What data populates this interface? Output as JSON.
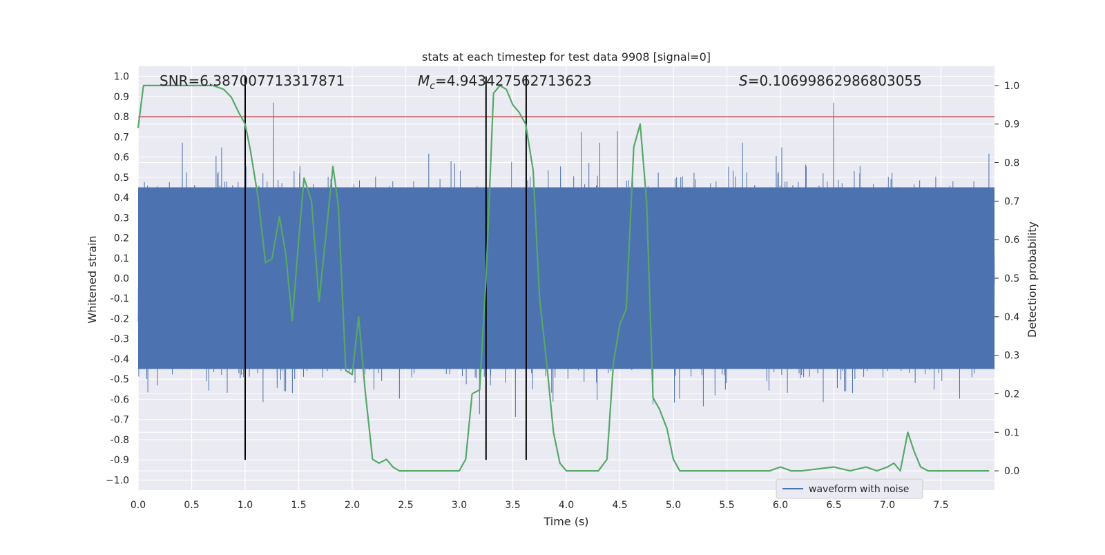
{
  "chart_data": {
    "type": "line",
    "title": "stats at each timestep for test data 9908 [signal=0]",
    "xlabel": "Time (s)",
    "ylabel_left": "Whitened strain",
    "ylabel_right": "Detection probability",
    "xlim": [
      0.0,
      8.0
    ],
    "ylim_left": [
      -1.05,
      1.05
    ],
    "ylim_right": [
      -0.05,
      1.05
    ],
    "x_ticks": [
      "0.0",
      "0.5",
      "1.0",
      "1.5",
      "2.0",
      "2.5",
      "3.0",
      "3.5",
      "4.0",
      "4.5",
      "5.0",
      "5.5",
      "6.0",
      "6.5",
      "7.0",
      "7.5"
    ],
    "y_ticks_left": [
      "1.0",
      "0.9",
      "0.8",
      "0.7",
      "0.6",
      "0.5",
      "0.4",
      "0.3",
      "0.2",
      "0.1",
      "0.0",
      "-0.1",
      "-0.2",
      "-0.3",
      "-0.4",
      "-0.5",
      "-0.6",
      "-0.7",
      "-0.8",
      "-0.9",
      "−1.0"
    ],
    "y_ticks_right": [
      "1.0",
      "0.9",
      "0.8",
      "0.7",
      "0.6",
      "0.5",
      "0.4",
      "0.3",
      "0.2",
      "0.1",
      "0.0"
    ],
    "grid": true,
    "legend": {
      "placement": "lower-right",
      "entries": [
        {
          "label": "waveform with noise",
          "color": "#4c72b0"
        }
      ]
    },
    "annotations": {
      "snr": "SNR=6.387007713317871",
      "mc_symbol": "M",
      "mc_sub": "c",
      "mc_value": "=4.943427562713623",
      "s_symbol": "S",
      "s_value": "=0.10699862986803055"
    },
    "threshold": {
      "axis": "left",
      "value": 0.8,
      "color": "#c44e52"
    },
    "vertical_markers": {
      "x": [
        1.0,
        3.25,
        3.625
      ],
      "y_range_left": [
        -0.9,
        1.0
      ],
      "color": "#000000"
    },
    "series": [
      {
        "name": "waveform with noise",
        "axis": "left",
        "color": "#4c72b0",
        "kind": "dense-noise",
        "core_envelope": 0.45,
        "typical_peak": 0.65,
        "x_range": [
          0.0,
          8.0
        ]
      },
      {
        "axis": "right",
        "color": "#55a868",
        "x": [
          0.0,
          0.05,
          0.1,
          0.2,
          0.3,
          0.4,
          0.5,
          0.6,
          0.7,
          0.8,
          0.87,
          0.94,
          1.0,
          1.05,
          1.12,
          1.19,
          1.25,
          1.32,
          1.38,
          1.44,
          1.5,
          1.55,
          1.62,
          1.69,
          1.75,
          1.82,
          1.87,
          1.94,
          2.0,
          2.06,
          2.12,
          2.19,
          2.25,
          2.32,
          2.38,
          2.44,
          2.5,
          2.6,
          2.8,
          3.0,
          3.06,
          3.12,
          3.19,
          3.25,
          3.32,
          3.38,
          3.44,
          3.5,
          3.56,
          3.62,
          3.69,
          3.75,
          3.82,
          3.88,
          3.94,
          4.0,
          4.1,
          4.2,
          4.3,
          4.38,
          4.44,
          4.5,
          4.56,
          4.63,
          4.69,
          4.75,
          4.81,
          4.87,
          4.94,
          5.0,
          5.06,
          5.2,
          5.5,
          5.9,
          6.0,
          6.1,
          6.2,
          6.5,
          6.65,
          6.8,
          6.9,
          7.0,
          7.06,
          7.12,
          7.19,
          7.25,
          7.31,
          7.38,
          7.44,
          7.5,
          7.7,
          7.95
        ],
        "y": [
          0.89,
          1.0,
          1.0,
          1.0,
          1.0,
          1.0,
          1.0,
          1.0,
          1.0,
          0.99,
          0.97,
          0.93,
          0.9,
          0.83,
          0.71,
          0.54,
          0.55,
          0.66,
          0.56,
          0.39,
          0.6,
          0.76,
          0.7,
          0.44,
          0.6,
          0.79,
          0.69,
          0.26,
          0.25,
          0.4,
          0.21,
          0.03,
          0.02,
          0.03,
          0.01,
          0.0,
          0.0,
          0.0,
          0.0,
          0.0,
          0.03,
          0.2,
          0.21,
          0.5,
          0.98,
          1.0,
          0.99,
          0.95,
          0.93,
          0.9,
          0.78,
          0.45,
          0.27,
          0.1,
          0.02,
          0.0,
          0.0,
          0.0,
          0.0,
          0.03,
          0.28,
          0.38,
          0.42,
          0.84,
          0.9,
          0.7,
          0.19,
          0.16,
          0.11,
          0.03,
          0.0,
          0.0,
          0.0,
          0.0,
          0.01,
          0.0,
          0.0,
          0.01,
          0.0,
          0.01,
          0.0,
          0.01,
          0.02,
          0.0,
          0.1,
          0.05,
          0.01,
          0.0,
          0.0,
          0.0,
          0.0,
          0.0
        ]
      }
    ]
  }
}
